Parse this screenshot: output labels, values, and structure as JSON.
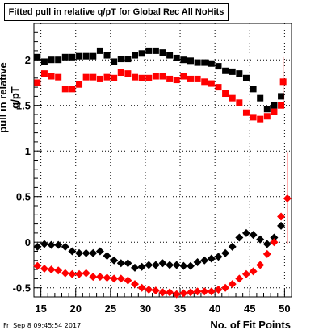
{
  "chart_data": {
    "type": "scatter",
    "title": "Fitted pull in relative q/pT for Global Rec All NoHits",
    "xlabel": "No. of Fit Points",
    "ylabel": "pull in relative q/pT",
    "xlim": [
      14,
      51
    ],
    "ylim": [
      -0.6,
      2.4
    ],
    "xticks": [
      15,
      20,
      25,
      30,
      35,
      40,
      45,
      50
    ],
    "yticks": [
      -0.5,
      0,
      0.5,
      1,
      1.5,
      2
    ],
    "ytick_labels": [
      "-0.5",
      "0",
      "0.5",
      "1",
      "1.5",
      "2"
    ],
    "grid": true,
    "x": [
      14.5,
      15.5,
      16.5,
      17.5,
      18.5,
      19.5,
      20.5,
      21.5,
      22.5,
      23.5,
      24.5,
      25.5,
      26.5,
      27.5,
      28.5,
      29.5,
      30.5,
      31.5,
      32.5,
      33.5,
      34.5,
      35.5,
      36.5,
      37.5,
      38.5,
      39.5,
      40.5,
      41.5,
      42.5,
      43.5,
      44.5,
      45.5,
      46.5,
      47.5,
      48.5,
      49.5
    ],
    "series": [
      {
        "color": "#000000",
        "marker": "square",
        "values": [
          2.03,
          1.98,
          2.0,
          2.0,
          2.03,
          2.03,
          2.04,
          2.04,
          2.04,
          2.1,
          2.05,
          1.98,
          2.01,
          2.01,
          2.05,
          2.07,
          2.1,
          2.1,
          2.08,
          2.05,
          2.02,
          2.0,
          1.99,
          1.97,
          1.97,
          1.96,
          1.93,
          1.88,
          1.87,
          1.85,
          1.8,
          1.68,
          1.58,
          1.46,
          1.5,
          1.6
        ]
      },
      {
        "color": "#ff0000",
        "marker": "square",
        "values": [
          1.75,
          1.85,
          1.82,
          1.81,
          1.68,
          1.68,
          1.73,
          1.81,
          1.81,
          1.79,
          1.81,
          1.8,
          1.86,
          1.85,
          1.81,
          1.8,
          1.8,
          1.82,
          1.82,
          1.79,
          1.78,
          1.82,
          1.79,
          1.79,
          1.76,
          1.74,
          1.7,
          1.63,
          1.58,
          1.53,
          1.42,
          1.37,
          1.35,
          1.38,
          1.43,
          1.5
        ]
      },
      {
        "color": "#000000",
        "marker": "diamond",
        "values": [
          -0.05,
          -0.02,
          -0.03,
          -0.03,
          -0.05,
          -0.1,
          -0.12,
          -0.12,
          -0.12,
          -0.1,
          -0.15,
          -0.2,
          -0.23,
          -0.23,
          -0.28,
          -0.27,
          -0.25,
          -0.25,
          -0.23,
          -0.25,
          -0.25,
          -0.26,
          -0.26,
          -0.22,
          -0.2,
          -0.18,
          -0.16,
          -0.12,
          -0.05,
          0.05,
          0.1,
          0.08,
          0.03,
          -0.02,
          0.05,
          0.18
        ]
      },
      {
        "color": "#ff0000",
        "marker": "diamond",
        "values": [
          -0.26,
          -0.29,
          -0.3,
          -0.31,
          -0.34,
          -0.35,
          -0.35,
          -0.34,
          -0.38,
          -0.38,
          -0.39,
          -0.4,
          -0.4,
          -0.42,
          -0.46,
          -0.5,
          -0.52,
          -0.53,
          -0.55,
          -0.55,
          -0.57,
          -0.56,
          -0.55,
          -0.54,
          -0.54,
          -0.54,
          -0.52,
          -0.5,
          -0.46,
          -0.4,
          -0.35,
          -0.32,
          -0.25,
          -0.13,
          0.0,
          0.28
        ]
      }
    ],
    "extra_points": [
      {
        "series": 1,
        "x": 49.8,
        "y": 1.76,
        "yerr": 0.27
      },
      {
        "series": 3,
        "x": 50.4,
        "y": 0.48,
        "yerr": 0.5
      }
    ]
  },
  "footer_timestamp": "Fri Sep  8 09:45:54 2017"
}
